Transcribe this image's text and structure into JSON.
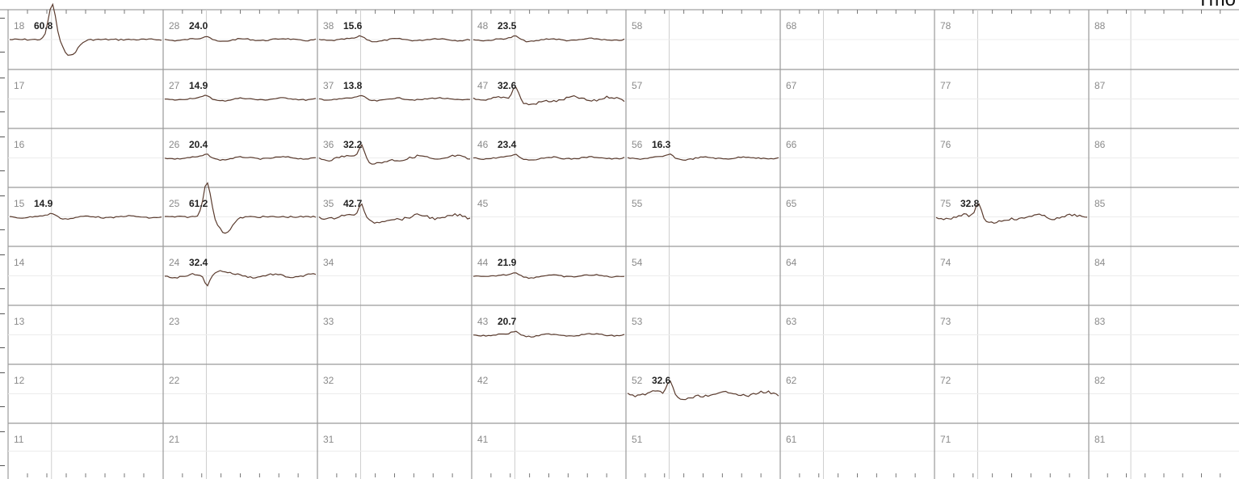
{
  "header": {
    "corner_text": "Tmo"
  },
  "grid": {
    "columns": 8,
    "rows": 8,
    "wells": [
      {
        "id": "18",
        "value": "60.8",
        "trace": "spike"
      },
      {
        "id": "28",
        "value": "24.0",
        "trace": "small"
      },
      {
        "id": "38",
        "value": "15.6",
        "trace": "small"
      },
      {
        "id": "48",
        "value": "23.5",
        "trace": "small"
      },
      {
        "id": "58",
        "value": "",
        "trace": ""
      },
      {
        "id": "68",
        "value": "",
        "trace": ""
      },
      {
        "id": "78",
        "value": "",
        "trace": ""
      },
      {
        "id": "88",
        "value": "",
        "trace": ""
      },
      {
        "id": "17",
        "value": "",
        "trace": ""
      },
      {
        "id": "27",
        "value": "14.9",
        "trace": "small"
      },
      {
        "id": "37",
        "value": "13.8",
        "trace": "small"
      },
      {
        "id": "47",
        "value": "32.6",
        "trace": "medium"
      },
      {
        "id": "57",
        "value": "",
        "trace": ""
      },
      {
        "id": "67",
        "value": "",
        "trace": ""
      },
      {
        "id": "77",
        "value": "",
        "trace": ""
      },
      {
        "id": "87",
        "value": "",
        "trace": ""
      },
      {
        "id": "16",
        "value": "",
        "trace": ""
      },
      {
        "id": "26",
        "value": "20.4",
        "trace": "small"
      },
      {
        "id": "36",
        "value": "32.2",
        "trace": "medium"
      },
      {
        "id": "46",
        "value": "23.4",
        "trace": "small"
      },
      {
        "id": "56",
        "value": "16.3",
        "trace": "small"
      },
      {
        "id": "66",
        "value": "",
        "trace": ""
      },
      {
        "id": "76",
        "value": "",
        "trace": ""
      },
      {
        "id": "86",
        "value": "",
        "trace": ""
      },
      {
        "id": "15",
        "value": "14.9",
        "trace": "small"
      },
      {
        "id": "25",
        "value": "61.2",
        "trace": "spike"
      },
      {
        "id": "35",
        "value": "42.7",
        "trace": "medium"
      },
      {
        "id": "45",
        "value": "",
        "trace": ""
      },
      {
        "id": "55",
        "value": "",
        "trace": ""
      },
      {
        "id": "65",
        "value": "",
        "trace": ""
      },
      {
        "id": "75",
        "value": "32.8",
        "trace": "medium"
      },
      {
        "id": "85",
        "value": "",
        "trace": ""
      },
      {
        "id": "14",
        "value": "",
        "trace": ""
      },
      {
        "id": "24",
        "value": "32.4",
        "trace": "dip"
      },
      {
        "id": "34",
        "value": "",
        "trace": ""
      },
      {
        "id": "44",
        "value": "21.9",
        "trace": "small"
      },
      {
        "id": "54",
        "value": "",
        "trace": ""
      },
      {
        "id": "64",
        "value": "",
        "trace": ""
      },
      {
        "id": "74",
        "value": "",
        "trace": ""
      },
      {
        "id": "84",
        "value": "",
        "trace": ""
      },
      {
        "id": "13",
        "value": "",
        "trace": ""
      },
      {
        "id": "23",
        "value": "",
        "trace": ""
      },
      {
        "id": "33",
        "value": "",
        "trace": ""
      },
      {
        "id": "43",
        "value": "20.7",
        "trace": "small"
      },
      {
        "id": "53",
        "value": "",
        "trace": ""
      },
      {
        "id": "63",
        "value": "",
        "trace": ""
      },
      {
        "id": "73",
        "value": "",
        "trace": ""
      },
      {
        "id": "83",
        "value": "",
        "trace": ""
      },
      {
        "id": "12",
        "value": "",
        "trace": ""
      },
      {
        "id": "22",
        "value": "",
        "trace": ""
      },
      {
        "id": "32",
        "value": "",
        "trace": ""
      },
      {
        "id": "42",
        "value": "",
        "trace": ""
      },
      {
        "id": "52",
        "value": "32.6",
        "trace": "medium"
      },
      {
        "id": "62",
        "value": "",
        "trace": ""
      },
      {
        "id": "72",
        "value": "",
        "trace": ""
      },
      {
        "id": "82",
        "value": "",
        "trace": ""
      },
      {
        "id": "11",
        "value": "",
        "trace": ""
      },
      {
        "id": "21",
        "value": "",
        "trace": ""
      },
      {
        "id": "31",
        "value": "",
        "trace": ""
      },
      {
        "id": "41",
        "value": "",
        "trace": ""
      },
      {
        "id": "51",
        "value": "",
        "trace": ""
      },
      {
        "id": "61",
        "value": "",
        "trace": ""
      },
      {
        "id": "71",
        "value": "",
        "trace": ""
      },
      {
        "id": "81",
        "value": "",
        "trace": ""
      }
    ]
  },
  "colors": {
    "grid_line": "#9a9a9a",
    "sub_line": "#cfcfcf",
    "trace": "#5a3b2e",
    "id_text": "#8a8a8a",
    "value_text": "#222222"
  }
}
